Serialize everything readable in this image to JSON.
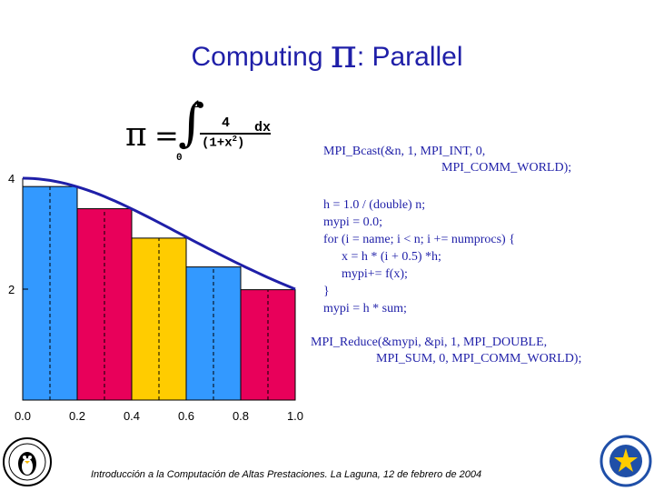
{
  "slide": {
    "title_prefix": "Computing ",
    "title_pi": "π",
    "title_suffix": ": Parallel"
  },
  "formula": {
    "pi": "π",
    "equals": "=",
    "integral": "∫",
    "upper_limit": "1",
    "lower_limit": "0",
    "numerator": "4",
    "denominator": "(1+x",
    "exponent": "2",
    "denominator_close": ")",
    "differential": "dx"
  },
  "code": {
    "bcast_line1": "MPI_Bcast(&n, 1, MPI_INT, 0,",
    "bcast_line2": "MPI_COMM_WORLD);",
    "lines": [
      "h   = 1.0 / (double) n;",
      "mypi = 0.0;",
      "for (i = name; i < n; i += numprocs) {",
      "x = h * (i + 0.5) *h;",
      "mypi+= f(x);",
      "}",
      "mypi = h * sum;"
    ],
    "reduce_line1": "MPI_Reduce(&mypi, &pi, 1, MPI_DOUBLE,",
    "reduce_line2": "MPI_SUM, 0, MPI_COMM_WORLD);"
  },
  "chart_data": {
    "type": "bar",
    "title": "",
    "xlabel": "",
    "ylabel": "",
    "xlim": [
      0.0,
      1.0
    ],
    "ylim": [
      0,
      4
    ],
    "x_ticks": [
      "0.0",
      "0.2",
      "0.4",
      "0.6",
      "0.8",
      "1.0"
    ],
    "y_ticks": [
      {
        "value": 4,
        "label": "4"
      },
      {
        "value": 2,
        "label": "2"
      }
    ],
    "bars": [
      {
        "x0": 0.0,
        "x1": 0.2,
        "height": 3.85,
        "color": "#3399ff"
      },
      {
        "x0": 0.2,
        "x1": 0.4,
        "height": 3.45,
        "color": "#e8005a"
      },
      {
        "x0": 0.4,
        "x1": 0.6,
        "height": 2.92,
        "color": "#ffcc00"
      },
      {
        "x0": 0.6,
        "x1": 0.8,
        "height": 2.4,
        "color": "#3399ff"
      },
      {
        "x0": 0.8,
        "x1": 1.0,
        "height": 1.99,
        "color": "#e8005a"
      }
    ],
    "dashed_lines_x": [
      0.1,
      0.3,
      0.5,
      0.7,
      0.9
    ],
    "curve": {
      "function": "4/(1+x^2)",
      "color": "#1f1fa8"
    }
  },
  "footer": {
    "text": "Introducción a la Computación de Altas Prestaciones. La Laguna, 12 de febrero de 2004"
  }
}
